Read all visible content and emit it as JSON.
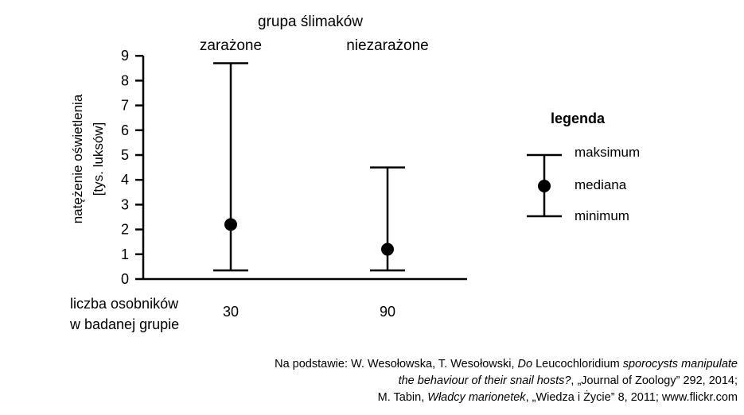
{
  "chart_data": {
    "type": "range",
    "title": "grupa ślimaków",
    "categories": [
      "zarażone",
      "niezarażone"
    ],
    "ylabel_line1": "natężenie oświetlenia",
    "ylabel_line2": "[tys. luksów]",
    "ylim": [
      0,
      9
    ],
    "yticks": [
      "0",
      "1",
      "2",
      "3",
      "4",
      "5",
      "6",
      "7",
      "8",
      "9"
    ],
    "series": [
      {
        "name": "maksimum",
        "values": [
          8.7,
          4.5
        ]
      },
      {
        "name": "mediana",
        "values": [
          2.2,
          1.2
        ]
      },
      {
        "name": "minimum",
        "values": [
          0.35,
          0.35
        ]
      }
    ],
    "group_size_label_line1": "liczba osobników",
    "group_size_label_line2": "w badanej grupie",
    "group_sizes": [
      "30",
      "90"
    ],
    "legend_title": "legenda",
    "legend_position": "right",
    "grid": false
  },
  "source": {
    "line1_prefix": "Na podstawie: W. Wesołowska, T. Wesołowski, ",
    "line1_i1": "Do",
    "line1_mid": " Leucochloridium ",
    "line1_i2": "sporocysts manipulate",
    "line2_i": "the behaviour of their snail hosts?",
    "line2_rest": ", „Journal of Zoology” 292, 2014;",
    "line3_prefix": "M. Tabin, ",
    "line3_i": "Władcy marionetek",
    "line3_rest": ", „Wiedza i Życie” 8, 2011; www.flickr.com"
  }
}
